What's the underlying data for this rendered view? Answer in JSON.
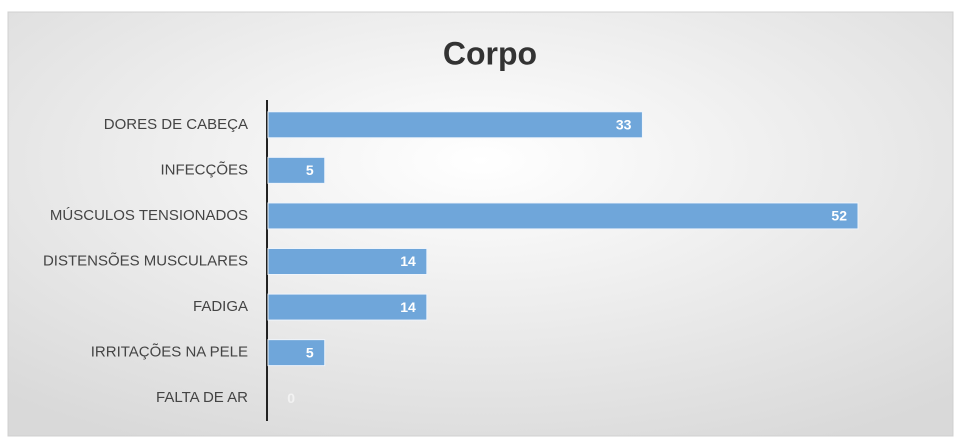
{
  "chart_data": {
    "type": "bar",
    "orientation": "horizontal",
    "title": "Corpo",
    "categories": [
      "DORES DE CABEÇA",
      "INFECÇÕES",
      "MÚSCULOS TENSIONADOS",
      "DISTENSÕES MUSCULARES",
      "FADIGA",
      "IRRITAÇÕES NA PELE",
      "FALTA DE AR"
    ],
    "values": [
      33,
      5,
      52,
      14,
      14,
      5,
      0
    ],
    "color": "#6fa6da"
  }
}
